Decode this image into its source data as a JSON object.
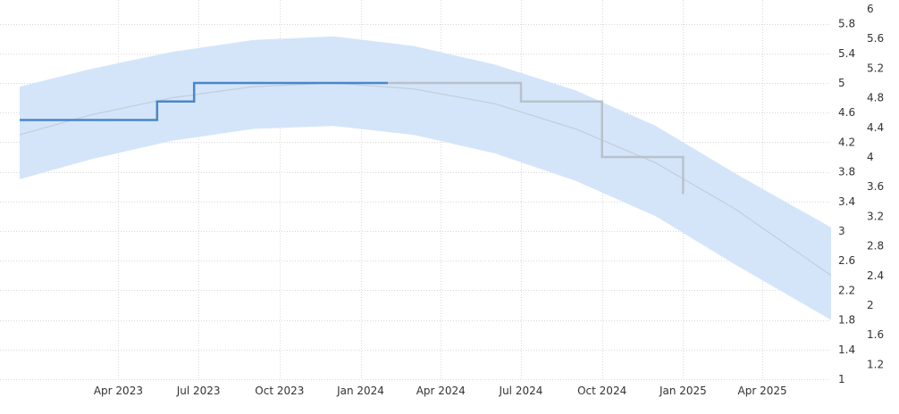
{
  "chart_data": {
    "type": "line",
    "title": "",
    "xlabel": "",
    "ylabel": "",
    "x_axis": {
      "type": "date",
      "range": [
        "2022-12-10",
        "2025-06-18"
      ],
      "ticks": [
        {
          "label": "Apr 2023",
          "date": "2023-04-01"
        },
        {
          "label": "Jul 2023",
          "date": "2023-07-01"
        },
        {
          "label": "Oct 2023",
          "date": "2023-10-01"
        },
        {
          "label": "Jan 2024",
          "date": "2024-01-01"
        },
        {
          "label": "Apr 2024",
          "date": "2024-04-01"
        },
        {
          "label": "Jul 2024",
          "date": "2024-07-01"
        },
        {
          "label": "Oct 2024",
          "date": "2024-10-01"
        },
        {
          "label": "Jan 2025",
          "date": "2025-01-01"
        },
        {
          "label": "Apr 2025",
          "date": "2025-04-01"
        }
      ]
    },
    "y_axis_inner": {
      "range": [
        1,
        6
      ],
      "ticks": [
        "1",
        "1.4",
        "1.8",
        "2.2",
        "2.6",
        "3",
        "3.4",
        "3.8",
        "4.2",
        "4.6",
        "5",
        "5.4",
        "5.8"
      ]
    },
    "y_axis_outer": {
      "range": [
        1,
        6
      ],
      "ticks": [
        "1.2",
        "1.6",
        "2",
        "2.4",
        "2.8",
        "3.2",
        "3.6",
        "4",
        "4.4",
        "4.8",
        "5.2",
        "5.6",
        "6"
      ]
    },
    "grid": true,
    "series": [
      {
        "role": "actual",
        "color": "#4a86c8",
        "points": [
          {
            "x": "2022-12-10",
            "y": 4.5
          },
          {
            "x": "2023-05-15",
            "y": 4.5
          },
          {
            "x": "2023-05-15",
            "y": 4.75
          },
          {
            "x": "2023-06-26",
            "y": 4.75
          },
          {
            "x": "2023-06-26",
            "y": 5.0
          },
          {
            "x": "2024-02-01",
            "y": 5.0
          }
        ]
      },
      {
        "role": "forecast",
        "color": "#b8c2cc",
        "points": [
          {
            "x": "2024-02-01",
            "y": 5.0
          },
          {
            "x": "2024-07-01",
            "y": 5.0
          },
          {
            "x": "2024-07-01",
            "y": 4.75
          },
          {
            "x": "2024-10-01",
            "y": 4.75
          },
          {
            "x": "2024-10-01",
            "y": 4.0
          },
          {
            "x": "2025-01-01",
            "y": 4.0
          },
          {
            "x": "2025-01-01",
            "y": 3.5
          }
        ]
      }
    ],
    "trend": {
      "color": "#c4cdd6",
      "points": [
        {
          "x": "2022-12-10",
          "y": 4.3
        },
        {
          "x": "2023-03-01",
          "y": 4.57
        },
        {
          "x": "2023-06-01",
          "y": 4.8
        },
        {
          "x": "2023-09-01",
          "y": 4.95
        },
        {
          "x": "2023-12-01",
          "y": 5.0
        },
        {
          "x": "2024-03-01",
          "y": 4.92
        },
        {
          "x": "2024-06-01",
          "y": 4.72
        },
        {
          "x": "2024-09-01",
          "y": 4.38
        },
        {
          "x": "2024-12-01",
          "y": 3.92
        },
        {
          "x": "2025-03-01",
          "y": 3.3
        },
        {
          "x": "2025-06-18",
          "y": 2.4
        }
      ]
    },
    "band": {
      "color": "#d4e5fa",
      "points": [
        {
          "x": "2022-12-10",
          "low": 3.7,
          "high": 4.95
        },
        {
          "x": "2023-03-01",
          "low": 3.97,
          "high": 5.19
        },
        {
          "x": "2023-06-01",
          "low": 4.22,
          "high": 5.42
        },
        {
          "x": "2023-09-01",
          "low": 4.38,
          "high": 5.58
        },
        {
          "x": "2023-12-01",
          "low": 4.42,
          "high": 5.63
        },
        {
          "x": "2024-03-01",
          "low": 4.3,
          "high": 5.5
        },
        {
          "x": "2024-06-01",
          "low": 4.05,
          "high": 5.25
        },
        {
          "x": "2024-09-01",
          "low": 3.68,
          "high": 4.9
        },
        {
          "x": "2024-12-01",
          "low": 3.2,
          "high": 4.42
        },
        {
          "x": "2025-03-01",
          "low": 2.55,
          "high": 3.78
        },
        {
          "x": "2025-06-18",
          "low": 1.8,
          "high": 3.05
        }
      ]
    }
  }
}
